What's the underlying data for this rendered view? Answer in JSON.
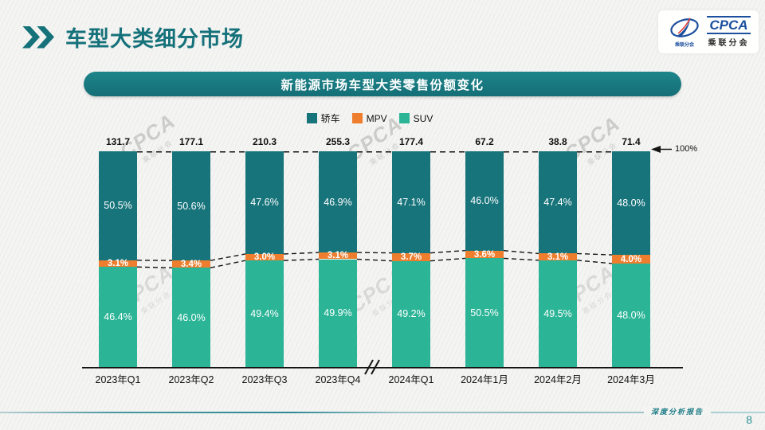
{
  "header": {
    "title": "车型大类细分市场"
  },
  "logo": {
    "name": "CPCA",
    "subtitle": "乘联分会",
    "oval_caption": "乘联分会"
  },
  "chart_data": {
    "type": "bar",
    "stacked": true,
    "title": "新能源市场车型大类零售份额变化",
    "unit": "%",
    "ylim": [
      0,
      100
    ],
    "grid": false,
    "legend_position": "top",
    "categories": [
      "2023年Q1",
      "2023年Q2",
      "2023年Q3",
      "2023年Q4",
      "2024年Q1",
      "2024年1月",
      "2024年2月",
      "2024年3月"
    ],
    "bar_totals": [
      131.7,
      177.1,
      210.3,
      255.3,
      177.4,
      67.2,
      38.8,
      71.4
    ],
    "series": [
      {
        "name": "轿车",
        "color": "#17747b",
        "values": [
          50.5,
          50.6,
          47.6,
          46.9,
          47.1,
          46.0,
          47.4,
          48.0
        ]
      },
      {
        "name": "MPV",
        "color": "#ee7e2d",
        "values": [
          3.1,
          3.4,
          3.0,
          3.1,
          3.7,
          3.6,
          3.1,
          4.0
        ]
      },
      {
        "name": "SUV",
        "color": "#2bb496",
        "values": [
          46.4,
          46.0,
          49.4,
          49.9,
          49.2,
          50.5,
          49.5,
          48.0
        ]
      }
    ],
    "right_annotation": "100%",
    "axis_break_after_index": 3
  },
  "footer": {
    "note": "深度分析报告",
    "page_number": "8"
  },
  "watermark": {
    "text": "CPCA",
    "subtext": "乘联分会"
  },
  "colors": {
    "accent_teal": "#15717a",
    "logo_blue": "#1c4f9e",
    "footer_teal": "#2e8f96"
  }
}
